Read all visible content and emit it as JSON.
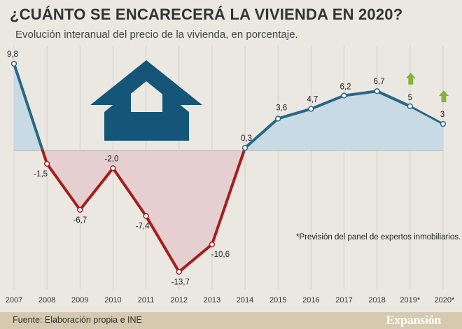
{
  "header": {
    "title": "¿CUÁNTO SE ENCARECERÁ LA VIVIENDA EN 2020?",
    "subtitle": "Evolución interanual del precio de la vivienda, en porcentaje."
  },
  "footer": {
    "source": "Fuente: Elaboración propia e INE",
    "brand": "Expansión"
  },
  "colors": {
    "positive_line": "#2b6687",
    "negative_line": "#a61d1d",
    "positive_fill": "#c8dae3",
    "negative_fill": "#e5cfd0",
    "forecast_arrow": "#86b33b",
    "house_icon": "#155678"
  },
  "icons": {
    "house": "house-icon",
    "forecast": "arrow-up-icon"
  },
  "chart_data": {
    "type": "line",
    "title": "",
    "xlabel": "",
    "ylabel": "",
    "categories": [
      "2007",
      "2008",
      "2009",
      "2010",
      "2011",
      "2012",
      "2013",
      "2014",
      "2015",
      "2016",
      "2017",
      "2018",
      "2019*",
      "2020*"
    ],
    "series": [
      {
        "values": [
          9.8,
          -1.5,
          -6.7,
          -2.0,
          -7.4,
          -13.7,
          -10.6,
          0.3,
          3.6,
          4.7,
          6.2,
          6.7,
          5,
          3
        ],
        "labels": [
          "9,8",
          "-1,5",
          "-6,7",
          "-2,0",
          "-7,4",
          "-13,7",
          "-10,6",
          "0,3",
          "3,6",
          "4,7",
          "6,2",
          "6,7",
          "5",
          "3"
        ]
      }
    ],
    "forecast_categories": [
      "2019*",
      "2020*"
    ],
    "note": "*Previsión del panel de expertos inmobiliarios.",
    "grid": "vertical",
    "area_fill": true
  }
}
